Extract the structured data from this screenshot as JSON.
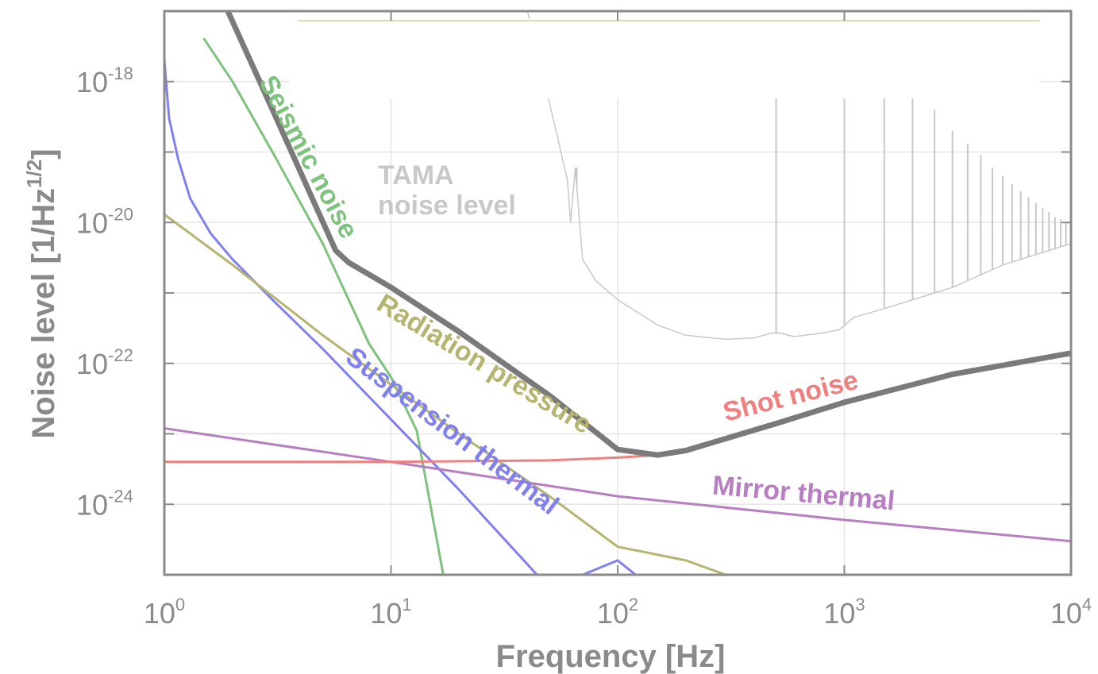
{
  "chart_data": {
    "type": "line",
    "title": "",
    "xlabel": "Frequency   [Hz]",
    "ylabel": "Noise level   [1/Hz",
    "ylabel_exp": "1/2",
    "ylabel_close": "]",
    "x_scale": "log",
    "y_scale": "log",
    "xlim": [
      1,
      10000
    ],
    "ylim": [
      1e-25,
      1e-17
    ],
    "grid": true,
    "x_ticks": [
      {
        "base": "10",
        "exp": "0",
        "value": 1
      },
      {
        "base": "10",
        "exp": "1",
        "value": 10
      },
      {
        "base": "10",
        "exp": "2",
        "value": 100
      },
      {
        "base": "10",
        "exp": "3",
        "value": 1000
      },
      {
        "base": "10",
        "exp": "4",
        "value": 10000
      }
    ],
    "y_ticks": [
      {
        "base": "10",
        "exp": "-18",
        "value": 1e-18
      },
      {
        "base": "10",
        "exp": "-20",
        "value": 1e-20
      },
      {
        "base": "10",
        "exp": "-22",
        "value": 1e-22
      },
      {
        "base": "10",
        "exp": "-24",
        "value": 1e-24
      }
    ],
    "series": [
      {
        "name": "Seismic noise",
        "color": "#7dc27d",
        "width": 3,
        "x": [
          1.5,
          2,
          3,
          5,
          8,
          10,
          13,
          17
        ],
        "y": [
          4e-18,
          1e-18,
          1e-19,
          5e-21,
          1.9e-22,
          6.4e-23,
          1.1e-23,
          1e-25
        ]
      },
      {
        "name": "Suspension thermal",
        "color": "#8080f0",
        "width": 3,
        "x": [
          1,
          1.05,
          1.15,
          1.3,
          1.6,
          2,
          3,
          5,
          10,
          20,
          50,
          100,
          120
        ],
        "y": [
          2e-18,
          3e-19,
          8e-20,
          2.2e-20,
          7e-21,
          3e-21,
          8e-22,
          1.6e-22,
          1.6e-23,
          1.6e-24,
          6.4e-26,
          1.6e-25,
          1e-25
        ]
      },
      {
        "name": "Radiation pressure",
        "color": "#b5b570",
        "width": 3,
        "x": [
          1,
          2,
          5,
          10,
          20,
          50,
          100,
          200,
          300
        ],
        "y": [
          1.3e-20,
          2.5e-21,
          2.5e-22,
          5e-23,
          1e-23,
          1.3e-24,
          2.5e-25,
          1.6e-25,
          1e-25
        ]
      },
      {
        "name": "Mirror thermal",
        "color": "#b77ec2",
        "width": 3,
        "x": [
          1,
          10,
          100,
          1000,
          10000
        ],
        "y": [
          1.2e-23,
          4e-24,
          1.3e-24,
          6e-25,
          3e-25
        ]
      },
      {
        "name": "Shot noise",
        "color": "#f08080",
        "width": 3,
        "x": [
          1,
          10,
          50,
          100,
          150
        ],
        "y": [
          4e-24,
          4e-24,
          4.2e-24,
          4.6e-24,
          5e-24
        ]
      },
      {
        "name": "",
        "color": "#7a7a7a",
        "width": 7,
        "x": [
          1.8,
          3,
          5.7,
          6.5,
          10,
          20,
          50,
          100,
          150,
          200,
          500,
          1000,
          3000,
          10000
        ],
        "y": [
          1.5e-17,
          4e-19,
          4e-21,
          2.7e-21,
          1.2e-21,
          2.8e-22,
          3.5e-23,
          6e-24,
          5e-24,
          5.8e-24,
          1.4e-23,
          2.8e-23,
          7e-23,
          1.4e-22
        ]
      }
    ],
    "tama": {
      "name": "TAMA noise level",
      "label_line1": "TAMA",
      "label_line2": "noise level",
      "color": "#c8c8c8",
      "x": [
        40,
        50,
        60,
        62,
        65,
        70,
        80,
        100,
        150,
        200,
        300,
        400,
        480,
        520,
        600,
        800,
        950,
        1100,
        1500,
        2000,
        3000,
        5000,
        10000
      ],
      "y": [
        1e-17,
        5e-19,
        4e-20,
        1e-20,
        6e-20,
        3e-21,
        1.5e-21,
        8e-22,
        3.5e-22,
        2.5e-22,
        2.2e-22,
        2.3e-22,
        2.7e-22,
        2.7e-22,
        2.4e-22,
        2.7e-22,
        3e-22,
        4.5e-22,
        6e-22,
        8e-22,
        1.2e-21,
        2.5e-21,
        5e-21
      ],
      "peaks": [
        {
          "x": 66,
          "y": 6e-20
        },
        {
          "x": 500,
          "y": 1e-17
        },
        {
          "x": 1000,
          "y": 1e-17
        },
        {
          "x": 1500,
          "y": 1e-17
        },
        {
          "x": 2000,
          "y": 1e-18
        },
        {
          "x": 2500,
          "y": 4e-19
        },
        {
          "x": 3000,
          "y": 2e-19
        },
        {
          "x": 3500,
          "y": 1.3e-19
        },
        {
          "x": 4000,
          "y": 9e-20
        },
        {
          "x": 4500,
          "y": 6e-20
        },
        {
          "x": 5000,
          "y": 4.5e-20
        },
        {
          "x": 5500,
          "y": 3.5e-20
        },
        {
          "x": 6000,
          "y": 2.8e-20
        },
        {
          "x": 6500,
          "y": 2.3e-20
        },
        {
          "x": 7000,
          "y": 1.9e-20
        },
        {
          "x": 7500,
          "y": 1.6e-20
        },
        {
          "x": 8000,
          "y": 1.4e-20
        },
        {
          "x": 8500,
          "y": 1.2e-20
        },
        {
          "x": 9000,
          "y": 1.1e-20
        },
        {
          "x": 9500,
          "y": 1e-20
        }
      ]
    },
    "annotations": [
      {
        "text": "Seismic noise",
        "color": "#7dc27d",
        "x": 2.6,
        "y": 1e-18,
        "rotate": 62
      },
      {
        "text": "Radiation pressure",
        "color": "#b5b570",
        "x": 8.5,
        "y": 6e-22,
        "rotate": 31
      },
      {
        "text": "Suspension thermal",
        "color": "#8080f0",
        "x": 6.2,
        "y": 1.1e-22,
        "rotate": 37
      },
      {
        "text": "Shot noise",
        "color": "#f08080",
        "x": 300,
        "y": 1.5e-23,
        "rotate": -14
      },
      {
        "text": "Mirror thermal",
        "color": "#b77ec2",
        "x": 260,
        "y": 1.4e-24,
        "rotate": 5
      }
    ]
  }
}
